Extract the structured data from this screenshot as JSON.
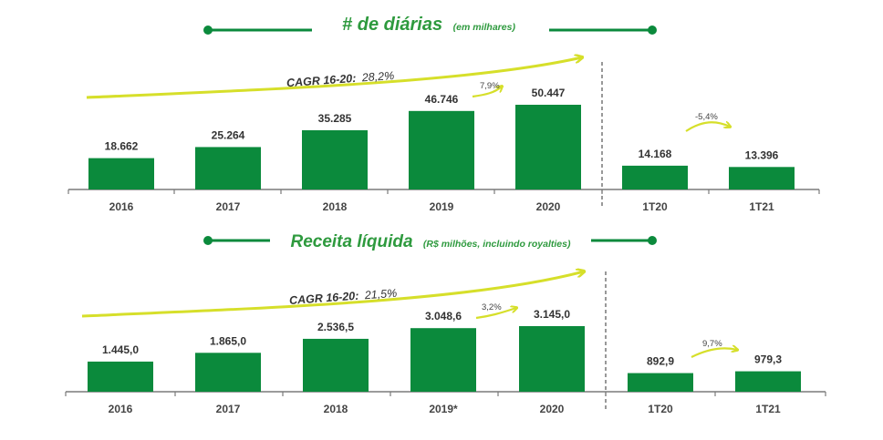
{
  "colors": {
    "bar": "#0b8a3c",
    "title": "#2e9a3e",
    "line": "#0b8a3c",
    "arrow": "#d6df2a",
    "axis": "#555555"
  },
  "chart_data": [
    {
      "type": "bar",
      "title": "# de diárias",
      "subtitle": "(em milhares)",
      "categories": [
        "2016",
        "2017",
        "2018",
        "2019",
        "2020",
        "1T20",
        "1T21"
      ],
      "values": [
        18662,
        25264,
        35285,
        46746,
        50447,
        14168,
        13396
      ],
      "value_labels": [
        "18.662",
        "25.264",
        "35.285",
        "46.746",
        "50.447",
        "14.168",
        "13.396"
      ],
      "cagr_label": "CAGR 16-20:",
      "cagr_value": "28,2%",
      "growth_annual": "7,9%",
      "growth_quarter": "-5,4%",
      "ylim": [
        0,
        50447
      ]
    },
    {
      "type": "bar",
      "title": "Receita líquida",
      "subtitle": "(R$ milhões, incluindo royalties)",
      "categories": [
        "2016",
        "2017",
        "2018",
        "2019*",
        "2020",
        "1T20",
        "1T21"
      ],
      "values": [
        1445.0,
        1865.0,
        2536.5,
        3048.6,
        3145.0,
        892.9,
        979.3
      ],
      "value_labels": [
        "1.445,0",
        "1.865,0",
        "2.536,5",
        "3.048,6",
        "3.145,0",
        "892,9",
        "979,3"
      ],
      "cagr_label": "CAGR 16-20:",
      "cagr_value": "21,5%",
      "growth_annual": "3,2%",
      "growth_quarter": "9,7%",
      "ylim": [
        0,
        3145.0
      ]
    }
  ]
}
